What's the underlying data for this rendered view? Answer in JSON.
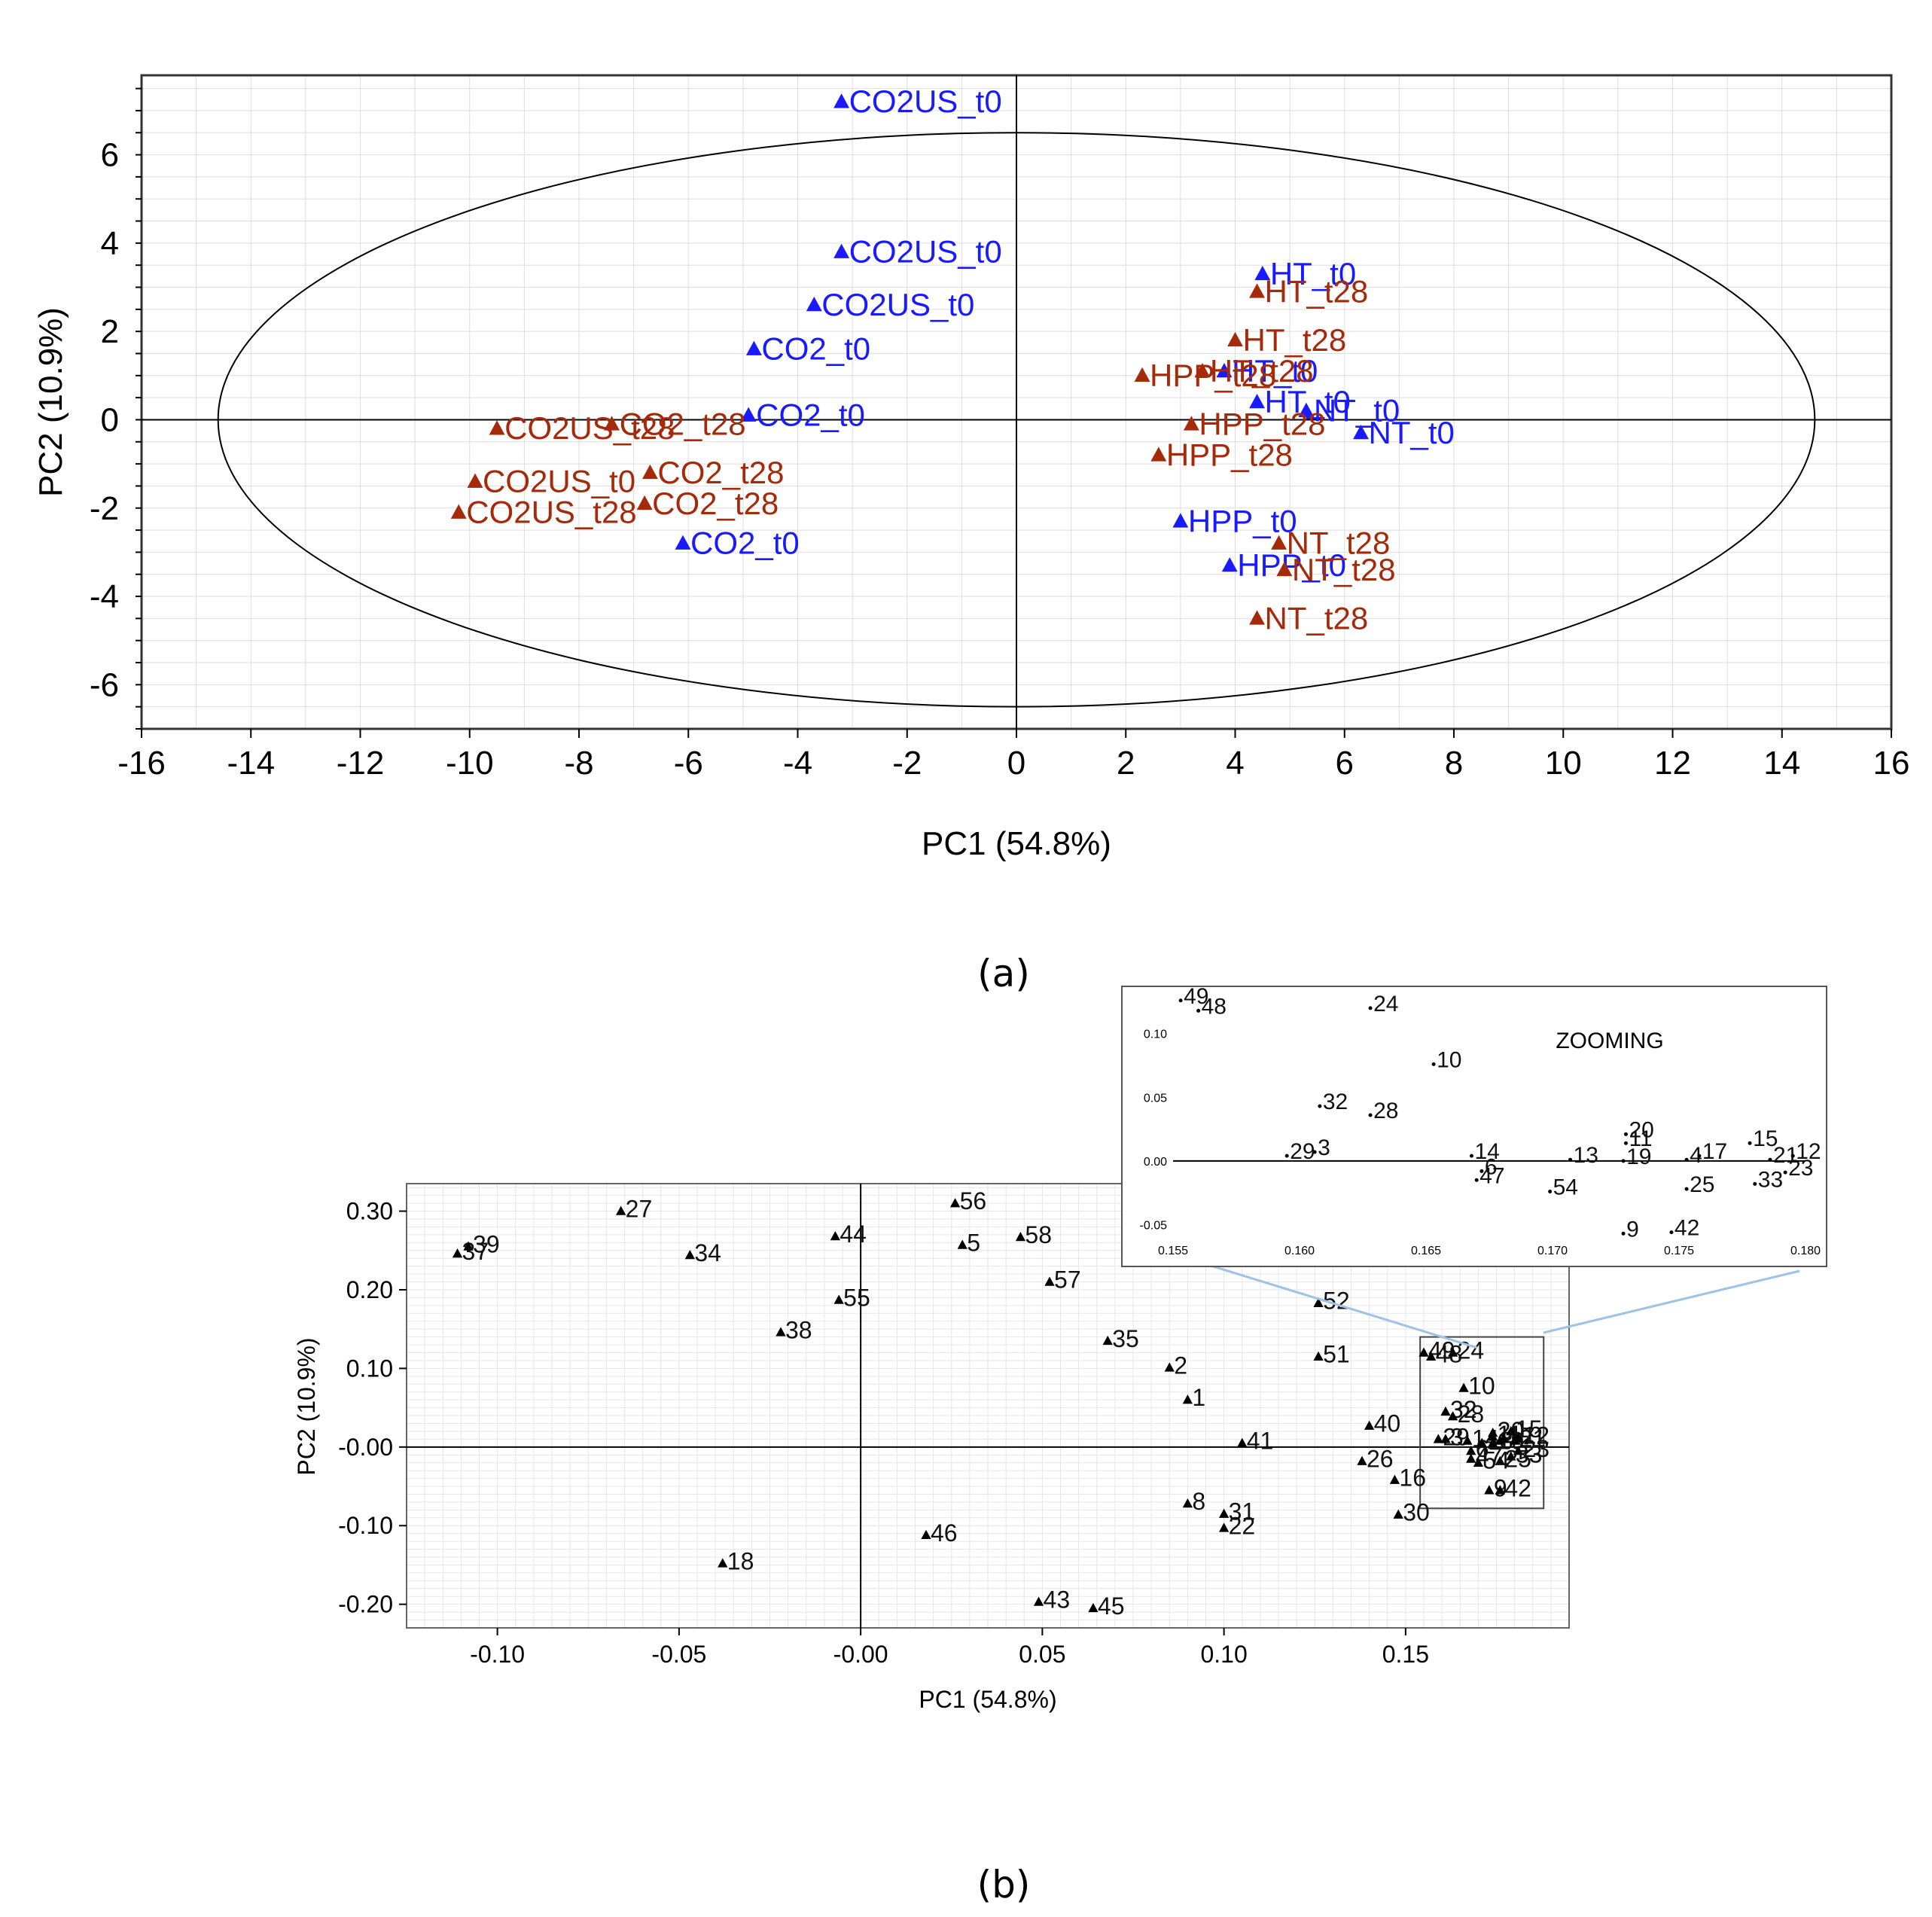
{
  "colors": {
    "t0": "#1a1aff",
    "t28": "#a52a0a",
    "markers_b": "#000000",
    "axis": "#000000",
    "grid": "#dddddd",
    "zoom_connector": "#9ec3e6"
  },
  "chart_data": [
    {
      "id": "a",
      "type": "scatter",
      "caption": "(a)",
      "xlabel": "PC1 (54.8%)",
      "ylabel": "PC2 (10.9%)",
      "xlim": [
        -16,
        16
      ],
      "ylim": [
        -7,
        7.8
      ],
      "xticks": [
        -16,
        -14,
        -12,
        -10,
        -8,
        -6,
        -4,
        -2,
        0,
        2,
        4,
        6,
        8,
        10,
        12,
        14,
        16
      ],
      "xtick_labels": [
        "-16",
        "-14",
        "-12",
        "-10",
        "-8",
        "-6",
        "-4",
        "-2",
        "0",
        "2",
        "4",
        "6",
        "8",
        "10",
        "12",
        "14",
        "16"
      ],
      "yticks": [
        -6,
        -4,
        -2,
        0,
        2,
        4,
        6
      ],
      "ytick_labels": [
        "-6",
        "-4",
        "-2",
        "0",
        "2",
        "4",
        "6"
      ],
      "ellipse": {
        "cx": 0,
        "cy": 0,
        "rx": 14.6,
        "ry": 6.5
      },
      "grid": true,
      "series": [
        {
          "name": "t0",
          "color_key": "t0",
          "points": [
            {
              "x": -3.2,
              "y": 7.2,
              "label": "CO2US_t0"
            },
            {
              "x": -3.2,
              "y": 3.8,
              "label": "CO2US_t0"
            },
            {
              "x": -3.7,
              "y": 2.6,
              "label": "CO2US_t0"
            },
            {
              "x": -4.8,
              "y": 1.6,
              "label": "CO2_t0"
            },
            {
              "x": -4.9,
              "y": 0.1,
              "label": "CO2_t0"
            },
            {
              "x": -6.1,
              "y": -2.8,
              "label": "CO2_t0"
            },
            {
              "x": 4.5,
              "y": 3.3,
              "label": "HT_t0"
            },
            {
              "x": 3.8,
              "y": 1.1,
              "label": "HT_t0"
            },
            {
              "x": 4.4,
              "y": 0.4,
              "label": "HT_t0"
            },
            {
              "x": 5.3,
              "y": 0.2,
              "label": "NT_t0"
            },
            {
              "x": 6.3,
              "y": -0.3,
              "label": "NT_t0"
            },
            {
              "x": 3.0,
              "y": -2.3,
              "label": "HPP_t0"
            },
            {
              "x": 3.9,
              "y": -3.3,
              "label": "HPP_t0"
            }
          ]
        },
        {
          "name": "t28",
          "color_key": "t28",
          "points": [
            {
              "x": -9.5,
              "y": -0.2,
              "label": "CO2US_t28"
            },
            {
              "x": -9.9,
              "y": -1.4,
              "label": "CO2US_t0"
            },
            {
              "x": -10.2,
              "y": -2.1,
              "label": "CO2US_t28"
            },
            {
              "x": -7.4,
              "y": -0.1,
              "label": "CO2_t28"
            },
            {
              "x": -6.7,
              "y": -1.2,
              "label": "CO2_t28"
            },
            {
              "x": -6.8,
              "y": -1.9,
              "label": "CO2_t28"
            },
            {
              "x": 4.4,
              "y": 2.9,
              "label": "HT_t28"
            },
            {
              "x": 4.0,
              "y": 1.8,
              "label": "HT_t28"
            },
            {
              "x": 3.4,
              "y": 1.1,
              "label": "HT_t28"
            },
            {
              "x": 2.3,
              "y": 1.0,
              "label": "HPP_t28"
            },
            {
              "x": 3.2,
              "y": -0.1,
              "label": "HPP_t28"
            },
            {
              "x": 2.6,
              "y": -0.8,
              "label": "HPP_t28"
            },
            {
              "x": 4.8,
              "y": -2.8,
              "label": "NT_t28"
            },
            {
              "x": 4.9,
              "y": -3.4,
              "label": "NT_t28"
            },
            {
              "x": 4.4,
              "y": -4.5,
              "label": "NT_t28"
            }
          ]
        }
      ]
    },
    {
      "id": "b",
      "type": "scatter",
      "caption": "(b)",
      "xlabel": "PC1 (54.8%)",
      "ylabel": "PC2 (10.9%)",
      "xlim": [
        -0.125,
        0.195
      ],
      "ylim": [
        -0.23,
        0.335
      ],
      "xticks": [
        -0.1,
        -0.05,
        0.0,
        0.05,
        0.1,
        0.15
      ],
      "xtick_labels": [
        "-0.10",
        "-0.05",
        "-0.00",
        "0.05",
        "0.10",
        "0.15"
      ],
      "yticks": [
        -0.2,
        -0.1,
        0.0,
        0.1,
        0.2,
        0.3
      ],
      "ytick_labels": [
        "-0.20",
        "-0.10",
        "-0.00",
        "0.10",
        "0.20",
        "0.30"
      ],
      "grid": true,
      "zoom_region": {
        "x": [
          0.154,
          0.188
        ],
        "y": [
          -0.078,
          0.14
        ]
      },
      "points": [
        {
          "x": 0.064,
          "y": -0.205,
          "label": "45"
        },
        {
          "x": 0.049,
          "y": -0.197,
          "label": "43"
        },
        {
          "x": -0.038,
          "y": -0.148,
          "label": "18"
        },
        {
          "x": 0.018,
          "y": -0.112,
          "label": "46"
        },
        {
          "x": 0.1,
          "y": -0.103,
          "label": "22"
        },
        {
          "x": 0.1,
          "y": -0.085,
          "label": "31"
        },
        {
          "x": 0.09,
          "y": -0.072,
          "label": "8"
        },
        {
          "x": 0.148,
          "y": -0.086,
          "label": "30"
        },
        {
          "x": 0.147,
          "y": -0.042,
          "label": "16"
        },
        {
          "x": 0.138,
          "y": -0.018,
          "label": "26"
        },
        {
          "x": 0.105,
          "y": 0.005,
          "label": "41"
        },
        {
          "x": 0.14,
          "y": 0.027,
          "label": "40"
        },
        {
          "x": 0.09,
          "y": 0.06,
          "label": "1"
        },
        {
          "x": 0.085,
          "y": 0.101,
          "label": "2"
        },
        {
          "x": 0.068,
          "y": 0.135,
          "label": "35"
        },
        {
          "x": 0.126,
          "y": 0.115,
          "label": "51"
        },
        {
          "x": 0.126,
          "y": 0.183,
          "label": "52"
        },
        {
          "x": 0.052,
          "y": 0.21,
          "label": "57"
        },
        {
          "x": 0.044,
          "y": 0.267,
          "label": "58"
        },
        {
          "x": 0.028,
          "y": 0.257,
          "label": "5"
        },
        {
          "x": 0.026,
          "y": 0.31,
          "label": "56"
        },
        {
          "x": -0.007,
          "y": 0.268,
          "label": "44"
        },
        {
          "x": -0.006,
          "y": 0.187,
          "label": "55"
        },
        {
          "x": -0.022,
          "y": 0.146,
          "label": "38"
        },
        {
          "x": -0.047,
          "y": 0.244,
          "label": "34"
        },
        {
          "x": -0.066,
          "y": 0.3,
          "label": "27"
        },
        {
          "x": -0.111,
          "y": 0.246,
          "label": "37"
        },
        {
          "x": -0.108,
          "y": 0.255,
          "label": "39"
        },
        {
          "x": 0.155,
          "y": 0.12,
          "label": "49"
        },
        {
          "x": 0.157,
          "y": 0.115,
          "label": "48"
        },
        {
          "x": 0.163,
          "y": 0.12,
          "label": "24"
        },
        {
          "x": 0.166,
          "y": 0.075,
          "label": "10"
        },
        {
          "x": 0.161,
          "y": 0.045,
          "label": "32"
        },
        {
          "x": 0.163,
          "y": 0.039,
          "label": "28"
        },
        {
          "x": 0.159,
          "y": 0.01,
          "label": "29"
        },
        {
          "x": 0.161,
          "y": 0.01,
          "label": "3"
        },
        {
          "x": 0.167,
          "y": 0.008,
          "label": "14"
        },
        {
          "x": 0.168,
          "y": -0.005,
          "label": "6"
        },
        {
          "x": 0.168,
          "y": -0.015,
          "label": "47"
        },
        {
          "x": 0.171,
          "y": 0.005,
          "label": "13"
        },
        {
          "x": 0.174,
          "y": 0.018,
          "label": "20"
        },
        {
          "x": 0.174,
          "y": 0.013,
          "label": "11"
        },
        {
          "x": 0.174,
          "y": 0.005,
          "label": "19"
        },
        {
          "x": 0.176,
          "y": 0.008,
          "label": "4"
        },
        {
          "x": 0.177,
          "y": 0.011,
          "label": "17"
        },
        {
          "x": 0.179,
          "y": 0.02,
          "label": "15"
        },
        {
          "x": 0.18,
          "y": 0.008,
          "label": "21"
        },
        {
          "x": 0.181,
          "y": 0.012,
          "label": "12"
        },
        {
          "x": 0.181,
          "y": -0.005,
          "label": "23"
        },
        {
          "x": 0.179,
          "y": -0.012,
          "label": "33"
        },
        {
          "x": 0.176,
          "y": -0.018,
          "label": "25"
        },
        {
          "x": 0.17,
          "y": -0.02,
          "label": "54"
        },
        {
          "x": 0.173,
          "y": -0.055,
          "label": "9"
        },
        {
          "x": 0.176,
          "y": -0.055,
          "label": "42"
        }
      ]
    },
    {
      "id": "b-zoom",
      "type": "scatter",
      "title": "ZOOMING",
      "xlim": [
        0.155,
        0.18
      ],
      "ylim": [
        -0.058,
        0.13
      ],
      "xticks": [
        0.155,
        0.16,
        0.165,
        0.17,
        0.175,
        0.18
      ],
      "xtick_labels": [
        "0.155",
        "0.160",
        "0.165",
        "0.170",
        "0.175",
        "0.180"
      ],
      "yticks": [
        -0.05,
        0.0,
        0.05,
        0.1
      ],
      "ytick_labels": [
        "-0.05",
        "0.00",
        "0.05",
        "0.10"
      ],
      "grid": false,
      "points": [
        {
          "x": 0.1553,
          "y": 0.126,
          "label": "49"
        },
        {
          "x": 0.156,
          "y": 0.118,
          "label": "48"
        },
        {
          "x": 0.1628,
          "y": 0.12,
          "label": "24"
        },
        {
          "x": 0.1653,
          "y": 0.076,
          "label": "10"
        },
        {
          "x": 0.1608,
          "y": 0.043,
          "label": "32"
        },
        {
          "x": 0.1628,
          "y": 0.036,
          "label": "28"
        },
        {
          "x": 0.1595,
          "y": 0.004,
          "label": "29"
        },
        {
          "x": 0.1606,
          "y": 0.007,
          "label": "3"
        },
        {
          "x": 0.1668,
          "y": 0.004,
          "label": "14"
        },
        {
          "x": 0.1672,
          "y": -0.008,
          "label": "6"
        },
        {
          "x": 0.167,
          "y": -0.015,
          "label": "47"
        },
        {
          "x": 0.1699,
          "y": -0.024,
          "label": "54"
        },
        {
          "x": 0.1707,
          "y": 0.001,
          "label": "13"
        },
        {
          "x": 0.1729,
          "y": 0.021,
          "label": "20"
        },
        {
          "x": 0.1729,
          "y": 0.014,
          "label": "11"
        },
        {
          "x": 0.1728,
          "y": 0.0,
          "label": "19"
        },
        {
          "x": 0.1753,
          "y": 0.001,
          "label": "4"
        },
        {
          "x": 0.1758,
          "y": 0.004,
          "label": "17"
        },
        {
          "x": 0.1778,
          "y": 0.014,
          "label": "15"
        },
        {
          "x": 0.1786,
          "y": 0.001,
          "label": "21"
        },
        {
          "x": 0.1795,
          "y": 0.004,
          "label": "12"
        },
        {
          "x": 0.1792,
          "y": -0.009,
          "label": "23"
        },
        {
          "x": 0.178,
          "y": -0.018,
          "label": "33"
        },
        {
          "x": 0.1753,
          "y": -0.022,
          "label": "25"
        },
        {
          "x": 0.1728,
          "y": -0.057,
          "label": "9"
        },
        {
          "x": 0.1747,
          "y": -0.056,
          "label": "42"
        }
      ]
    }
  ]
}
